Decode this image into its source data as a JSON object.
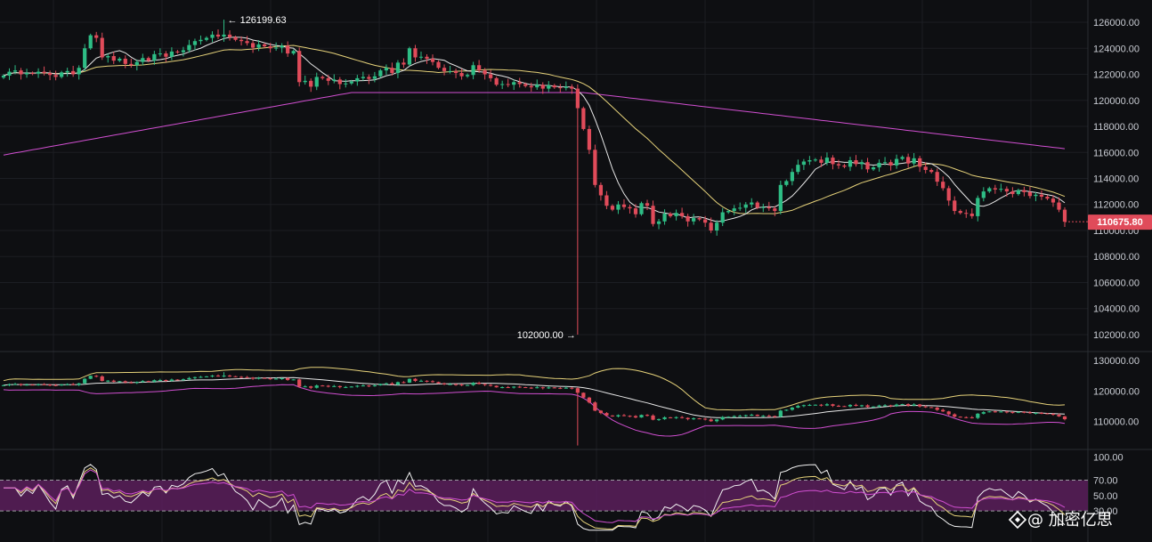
{
  "chart_data": [
    {
      "type": "candlestick",
      "panel": "main",
      "yticks": [
        126000,
        124000,
        122000,
        120000,
        118000,
        116000,
        114000,
        112000,
        110000,
        108000,
        106000,
        104000,
        102000
      ],
      "ytick_labels": [
        "126000.00",
        "124000.00",
        "122000.00",
        "120000.00",
        "118000.00",
        "116000.00",
        "114000.00",
        "112000.00",
        "110000.00",
        "108000.00",
        "106000.00",
        "104000.00",
        "102000.00"
      ],
      "ylim": [
        100700,
        127300
      ],
      "high_annotation": {
        "value": 126199.63,
        "label": "← 126199.63",
        "index": 38
      },
      "low_annotation": {
        "value": 102000.0,
        "label": "102000.00 →",
        "index": 99
      },
      "last_price": {
        "value": 110675.8,
        "label": "110675.80",
        "color": "#e04b5a"
      },
      "close": [
        121900,
        122200,
        122300,
        122000,
        122100,
        122050,
        122200,
        122100,
        121950,
        121800,
        122150,
        122250,
        122000,
        122500,
        124000,
        125000,
        124800,
        123300,
        123400,
        123050,
        123200,
        122800,
        122700,
        122950,
        123250,
        123050,
        123550,
        123600,
        123350,
        123750,
        123700,
        123850,
        124250,
        124550,
        124650,
        124800,
        125050,
        124900,
        125050,
        124850,
        124650,
        124550,
        124400,
        124050,
        124300,
        124150,
        124000,
        124050,
        124200,
        123600,
        123800,
        121400,
        121500,
        121050,
        121800,
        121700,
        121500,
        121600,
        121250,
        121300,
        121450,
        121700,
        121800,
        121650,
        121850,
        122300,
        122500,
        122100,
        122900,
        122750,
        124000,
        123300,
        123350,
        123200,
        122950,
        122500,
        122250,
        122250,
        122100,
        121850,
        121950,
        122700,
        122300,
        122000,
        121700,
        121200,
        121250,
        121200,
        121400,
        121250,
        121100,
        121000,
        121200,
        120900,
        121150,
        121000,
        120950,
        121050,
        120900,
        119400,
        117800,
        116200,
        113500,
        112700,
        111900,
        111600,
        112000,
        111800,
        111700,
        111250,
        112100,
        111900,
        110500,
        110700,
        111300,
        111100,
        111350,
        111100,
        110700,
        110950,
        110850,
        110600,
        110000,
        110600,
        111400,
        111500,
        111700,
        111750,
        112000,
        112150,
        111750,
        111800,
        111700,
        111500,
        113500,
        113800,
        114500,
        115050,
        115300,
        115400,
        115450,
        115200,
        115600,
        115100,
        115000,
        114900,
        115400,
        115100,
        115250,
        114700,
        114850,
        115200,
        115250,
        115000,
        115500,
        115650,
        115150,
        115550,
        114900,
        114650,
        114500,
        113750,
        113250,
        112300,
        111500,
        111350,
        111300,
        111100,
        112500,
        113000,
        113250,
        113150,
        113200,
        113000,
        112800,
        113100,
        112950,
        112650,
        112750,
        112600,
        112450,
        112150,
        111600,
        110675
      ]
    },
    {
      "type": "line",
      "panel": "bollinger",
      "yticks": [
        130000,
        120000,
        110000
      ],
      "ytick_labels": [
        "130000.00",
        "120000.00",
        "110000.00"
      ],
      "ylim": [
        100700,
        133000
      ]
    },
    {
      "type": "line",
      "panel": "rsi",
      "yticks": [
        100,
        70,
        50,
        30
      ],
      "ytick_labels": [
        "100.00",
        "70.00",
        "50.00",
        "30.00"
      ],
      "ylim": [
        0,
        110
      ],
      "band": [
        30,
        70
      ]
    }
  ],
  "colors": {
    "background": "#0e0f12",
    "up": "#2ebd85",
    "down": "#e04b5a",
    "ma_short": "#e8e8e8",
    "ma_mid": "#e6d27a",
    "ma_long": "#d14fd1",
    "rsi_band": "#5a1e5c",
    "grid": "#1c1e23"
  },
  "watermark": {
    "icon": "binance-logo-icon",
    "text": "@ 加密亿思"
  }
}
